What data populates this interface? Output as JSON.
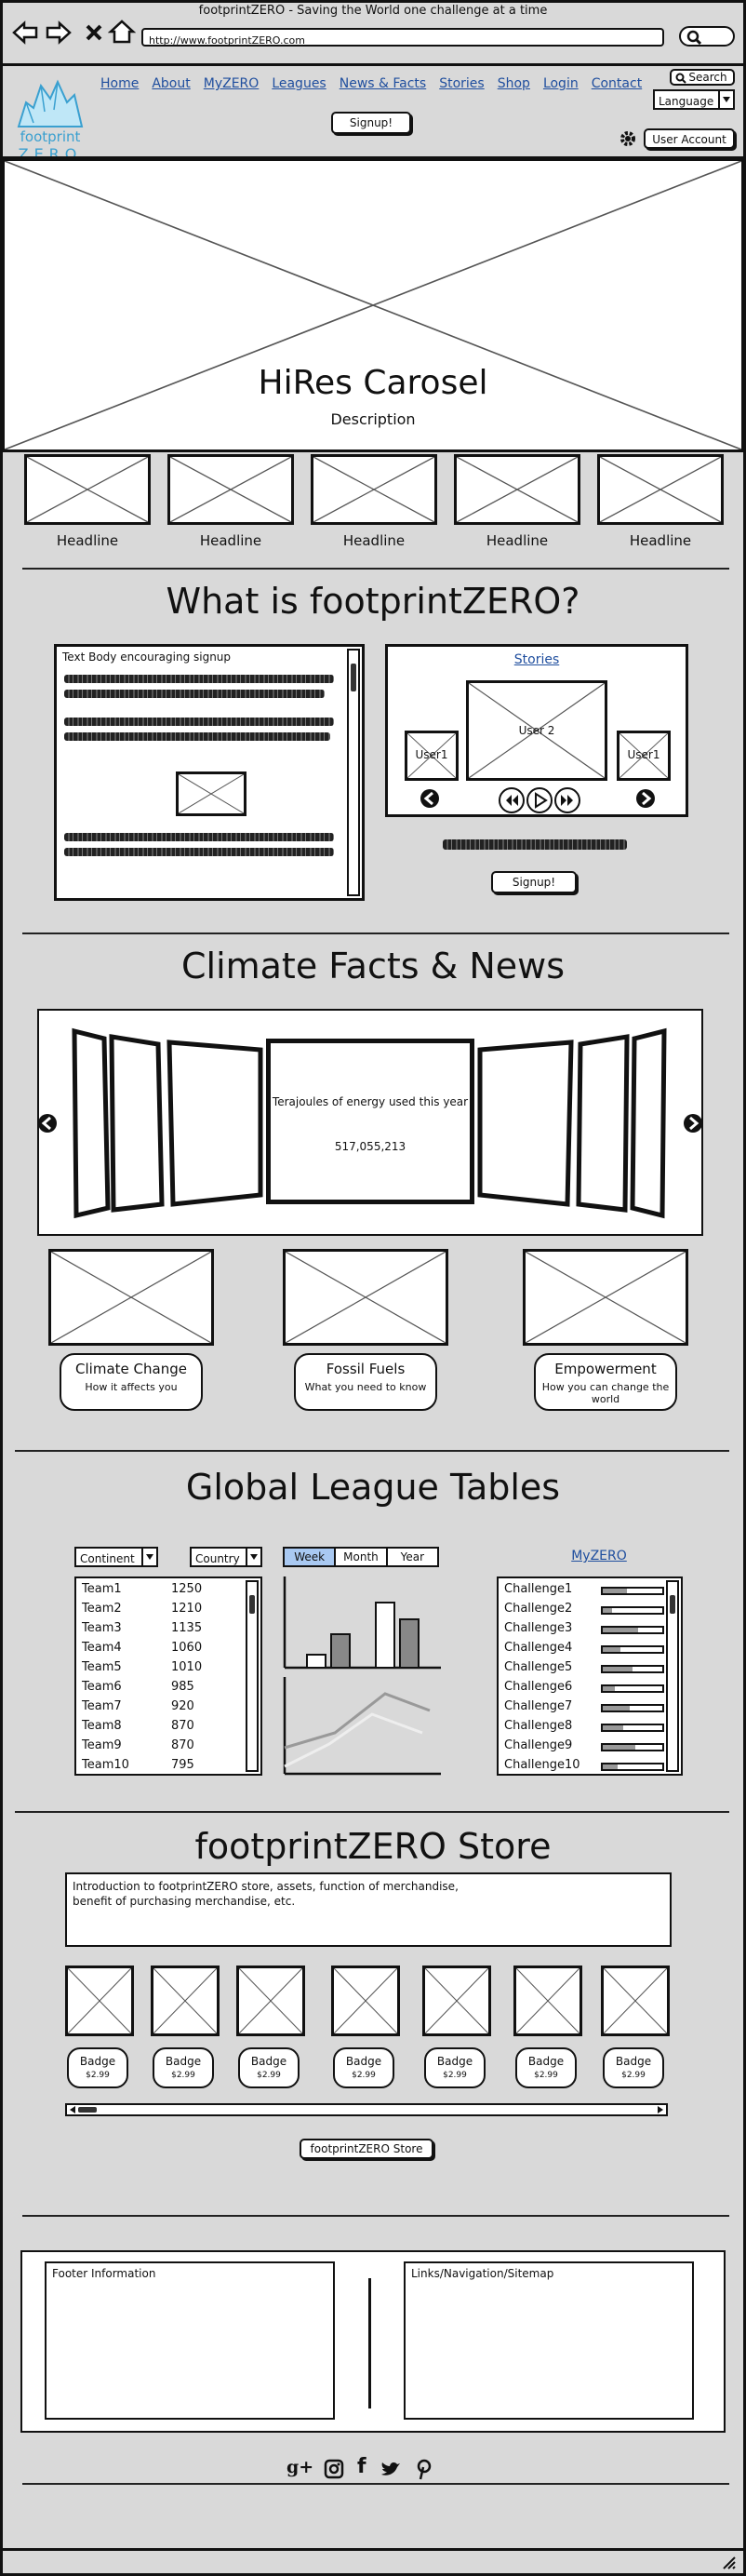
{
  "browser": {
    "title": "footprintZERO - Saving the World one challenge at a time",
    "url": "http://www.footprintZERO.com"
  },
  "header": {
    "logo_top": "footprint",
    "logo_bottom": "ZERO",
    "nav": [
      "Home",
      "About",
      "MyZERO",
      "Leagues",
      "News & Facts",
      "Stories",
      "Shop",
      "Login",
      "Contact"
    ],
    "search_label": "Search",
    "language_label": "Language",
    "signup_label": "Signup!",
    "account_label": "User Account"
  },
  "hero": {
    "title": "HiRes Carosel",
    "description": "Description"
  },
  "headlines": [
    "Headline",
    "Headline",
    "Headline",
    "Headline",
    "Headline"
  ],
  "what": {
    "title": "What is footprintZERO?",
    "text_title": "Text Body encouraging signup",
    "stories_label": "Stories",
    "user_left": "User1",
    "user_center": "User 2",
    "user_right": "User1",
    "signup_label": "Signup!"
  },
  "climate": {
    "title": "Climate Facts & News",
    "fact_label": "Terajoules of energy used this year",
    "fact_value": "517,055,213",
    "cards": [
      {
        "title": "Climate Change",
        "sub": "How it affects you"
      },
      {
        "title": "Fossil Fuels",
        "sub": "What you need to know"
      },
      {
        "title": "Empowerment",
        "sub": "How you can change the world"
      }
    ]
  },
  "league": {
    "title": "Global League Tables",
    "continent": "Continent",
    "country": "Country",
    "periods": [
      "Week",
      "Month",
      "Year"
    ],
    "active_period": "Week",
    "myzero": "MyZERO",
    "teams": [
      {
        "name": "Team1",
        "score": "1250"
      },
      {
        "name": "Team2",
        "score": "1210"
      },
      {
        "name": "Team3",
        "score": "1135"
      },
      {
        "name": "Team4",
        "score": "1060"
      },
      {
        "name": "Team5",
        "score": "1010"
      },
      {
        "name": "Team6",
        "score": "985"
      },
      {
        "name": "Team7",
        "score": "920"
      },
      {
        "name": "Team8",
        "score": "870"
      },
      {
        "name": "Team9",
        "score": "870"
      },
      {
        "name": "Team10",
        "score": "795"
      }
    ],
    "challenges": [
      "Challenge1",
      "Challenge2",
      "Challenge3",
      "Challenge4",
      "Challenge5",
      "Challenge6",
      "Challenge7",
      "Challenge8",
      "Challenge9",
      "Challenge10"
    ],
    "progress": [
      0.4,
      0.15,
      0.6,
      0.3,
      0.5,
      0.2,
      0.45,
      0.35,
      0.55,
      0.25
    ]
  },
  "store": {
    "title": "footprintZERO Store",
    "intro_line1": "Introduction to footprintZERO store, assets, function of merchandise,",
    "intro_line2": "benefit of purchasing merchandise, etc.",
    "badges": [
      {
        "name": "Badge",
        "price": "$2.99"
      },
      {
        "name": "Badge",
        "price": "$2.99"
      },
      {
        "name": "Badge",
        "price": "$2.99"
      },
      {
        "name": "Badge",
        "price": "$2.99"
      },
      {
        "name": "Badge",
        "price": "$2.99"
      },
      {
        "name": "Badge",
        "price": "$2.99"
      },
      {
        "name": "Badge",
        "price": "$2.99"
      }
    ],
    "button": "footprintZERO Store"
  },
  "footer": {
    "info": "Footer Information",
    "links": "Links/Navigation/Sitemap",
    "social": [
      "google-plus-icon",
      "instagram-icon",
      "facebook-icon",
      "twitter-icon",
      "pinterest-icon"
    ]
  }
}
